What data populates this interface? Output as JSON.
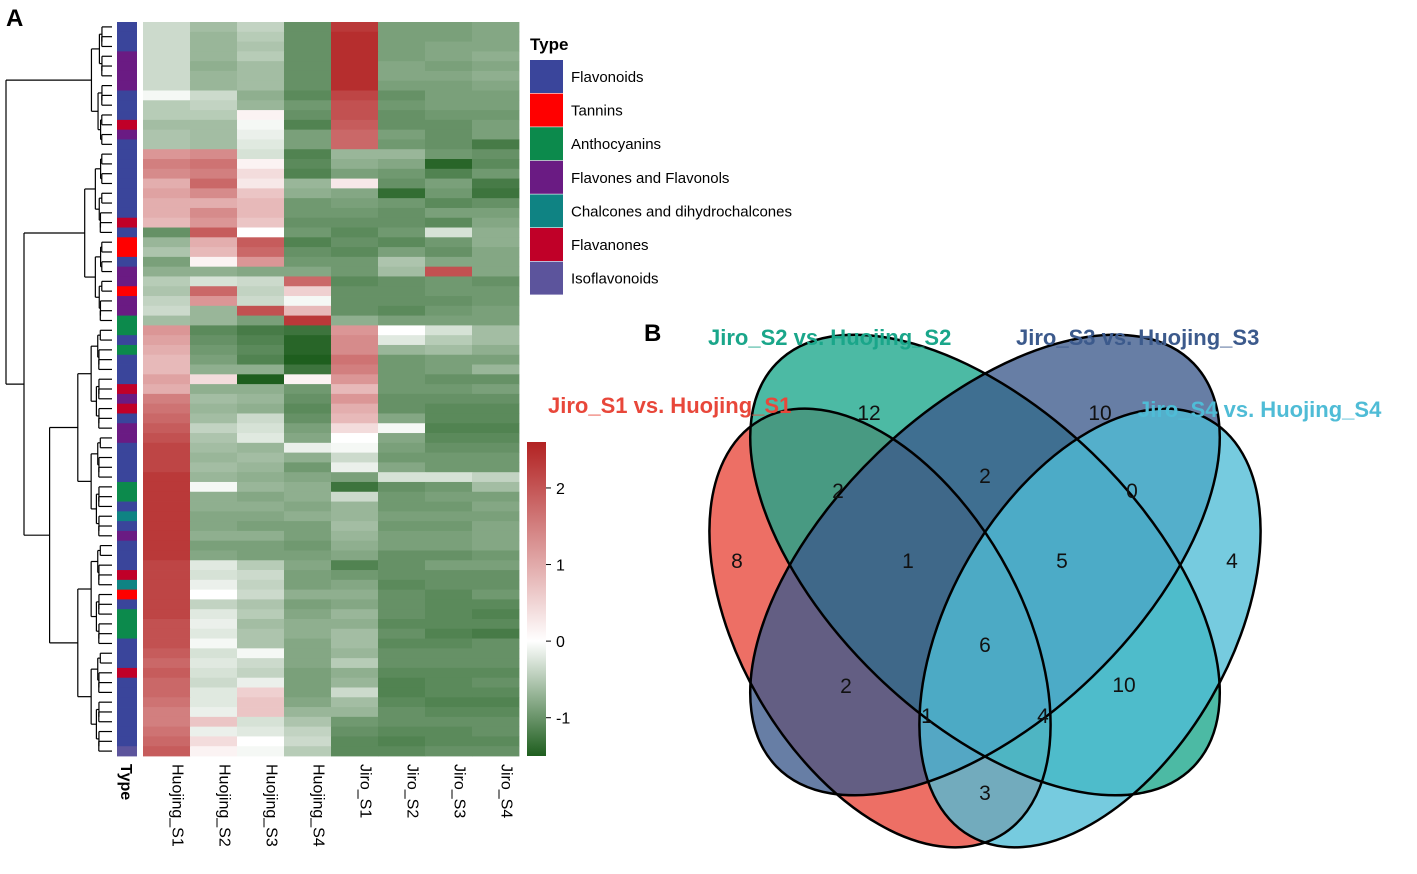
{
  "panels": {
    "a_label": "A",
    "b_label": "B"
  },
  "chart_data": [
    {
      "type": "heatmap",
      "title": "",
      "columns": [
        "Huojing_S1",
        "Huojing_S2",
        "Huojing_S3",
        "Huojing_S4",
        "Jiro_S1",
        "Jiro_S2",
        "Jiro_S3",
        "Jiro_S4"
      ],
      "row_annotation_label": "Type",
      "color_scale": {
        "min": -1.5,
        "max": 2.6,
        "ticks": [
          2,
          1,
          0,
          -1
        ],
        "tick_labels": [
          "2",
          "1",
          "0",
          "-1"
        ],
        "low_color": "#1e5e1e",
        "mid_color": "#ffffff",
        "high_color": "#b22222"
      },
      "legend": {
        "title": "Type",
        "entries": [
          {
            "label": "Flavonoids",
            "color": "#3a459b"
          },
          {
            "label": "Tannins",
            "color": "#ff0000"
          },
          {
            "label": "Anthocyanins",
            "color": "#0c8a4c"
          },
          {
            "label": "Flavones and Flavonols",
            "color": "#6a1b83"
          },
          {
            "label": "Chalcones and dihydrochalcones",
            "color": "#0f8383"
          },
          {
            "label": "Flavanones",
            "color": "#c00028"
          },
          {
            "label": "Isoflavonoids",
            "color": "#5c549c"
          }
        ]
      },
      "row_types": [
        "Flavonoids",
        "Flavonoids",
        "Flavonoids",
        "Flavones and Flavonols",
        "Flavones and Flavonols",
        "Flavones and Flavonols",
        "Flavones and Flavonols",
        "Flavonoids",
        "Flavonoids",
        "Flavonoids",
        "Flavanones",
        "Flavones and Flavonols",
        "Flavonoids",
        "Flavonoids",
        "Flavonoids",
        "Flavonoids",
        "Flavonoids",
        "Flavonoids",
        "Flavonoids",
        "Flavonoids",
        "Flavanones",
        "Flavonoids",
        "Tannins",
        "Tannins",
        "Flavonoids",
        "Flavones and Flavonols",
        "Flavones and Flavonols",
        "Tannins",
        "Flavones and Flavonols",
        "Flavones and Flavonols",
        "Anthocyanins",
        "Anthocyanins",
        "Flavonoids",
        "Anthocyanins",
        "Flavonoids",
        "Flavonoids",
        "Flavonoids",
        "Flavanones",
        "Flavones and Flavonols",
        "Flavanones",
        "Flavonoids",
        "Flavones and Flavonols",
        "Flavones and Flavonols",
        "Flavonoids",
        "Flavonoids",
        "Flavonoids",
        "Flavonoids",
        "Anthocyanins",
        "Anthocyanins",
        "Flavonoids",
        "Chalcones and dihydrochalcones",
        "Flavonoids",
        "Flavones and Flavonols",
        "Flavonoids",
        "Flavonoids",
        "Flavonoids",
        "Flavanones",
        "Chalcones and dihydrochalcones",
        "Tannins",
        "Flavonoids",
        "Anthocyanins",
        "Anthocyanins",
        "Anthocyanins",
        "Flavonoids",
        "Flavonoids",
        "Flavonoids",
        "Flavanones",
        "Flavonoids",
        "Flavonoids",
        "Flavonoids",
        "Flavonoids",
        "Flavonoids",
        "Flavonoids",
        "Flavonoids",
        "Isoflavonoids"
      ],
      "values": [
        [
          0.2,
          -0.2,
          0.1,
          -0.8,
          2.4,
          -0.6,
          -0.6,
          -0.5
        ],
        [
          0.2,
          -0.3,
          0.0,
          -0.8,
          2.5,
          -0.6,
          -0.6,
          -0.5
        ],
        [
          0.2,
          -0.3,
          -0.1,
          -0.8,
          2.5,
          -0.6,
          -0.5,
          -0.5
        ],
        [
          0.2,
          -0.3,
          0.0,
          -0.8,
          2.5,
          -0.6,
          -0.5,
          -0.4
        ],
        [
          0.2,
          -0.4,
          -0.2,
          -0.8,
          2.5,
          -0.5,
          -0.6,
          -0.5
        ],
        [
          0.2,
          -0.3,
          -0.2,
          -0.8,
          2.5,
          -0.5,
          -0.5,
          -0.4
        ],
        [
          0.2,
          -0.3,
          -0.2,
          -0.8,
          2.5,
          -0.6,
          -0.6,
          -0.5
        ],
        [
          0.6,
          0.2,
          -0.4,
          -0.9,
          2.3,
          -0.8,
          -0.6,
          -0.6
        ],
        [
          0.0,
          0.1,
          -0.3,
          -0.7,
          2.2,
          -0.7,
          -0.6,
          -0.6
        ],
        [
          0.0,
          0.0,
          0.8,
          -0.8,
          2.2,
          -0.8,
          -0.7,
          -0.7
        ],
        [
          -0.2,
          -0.2,
          0.6,
          -1.0,
          2.1,
          -0.8,
          -0.8,
          -0.6
        ],
        [
          -0.1,
          -0.2,
          0.5,
          -0.6,
          2.0,
          -0.6,
          -0.8,
          -0.6
        ],
        [
          -0.1,
          -0.2,
          0.4,
          -0.6,
          2.0,
          -0.7,
          -0.8,
          -1.1
        ],
        [
          1.6,
          1.7,
          0.3,
          -1.0,
          -0.3,
          -0.3,
          -0.7,
          -0.8
        ],
        [
          1.8,
          1.9,
          0.8,
          -0.9,
          -0.4,
          -0.5,
          -1.4,
          -0.9
        ],
        [
          1.7,
          1.8,
          1.0,
          -1.0,
          -0.6,
          -0.7,
          -1.0,
          -0.7
        ],
        [
          1.4,
          2.0,
          0.9,
          -0.3,
          0.9,
          -0.8,
          -0.6,
          -1.1
        ],
        [
          1.5,
          1.7,
          1.2,
          -0.4,
          -0.5,
          -1.3,
          -0.7,
          -1.2
        ],
        [
          1.4,
          1.4,
          1.3,
          -0.7,
          -0.6,
          -0.7,
          -0.9,
          -0.8
        ],
        [
          1.4,
          1.7,
          1.3,
          -0.7,
          -0.7,
          -0.8,
          -0.6,
          -0.6
        ],
        [
          1.3,
          1.6,
          1.2,
          -0.8,
          -0.8,
          -0.8,
          -0.9,
          -0.5
        ],
        [
          -0.8,
          2.1,
          0.7,
          -0.7,
          -0.9,
          -0.7,
          0.3,
          -0.4
        ],
        [
          -0.3,
          1.4,
          2.1,
          -1.0,
          -0.8,
          -0.9,
          -0.7,
          -0.4
        ],
        [
          -0.1,
          1.3,
          2.0,
          -0.8,
          -0.9,
          -0.6,
          -0.8,
          -0.5
        ],
        [
          -0.6,
          0.8,
          1.6,
          -0.7,
          -0.7,
          -0.1,
          -0.5,
          -0.5
        ],
        [
          -0.4,
          -0.4,
          -0.5,
          -0.5,
          -0.7,
          -0.2,
          2.2,
          -0.5
        ],
        [
          0.0,
          0.3,
          0.2,
          2.0,
          -0.9,
          -0.8,
          -0.7,
          -0.8
        ],
        [
          -0.1,
          2.0,
          0.1,
          1.1,
          -0.8,
          -0.8,
          -0.7,
          -0.7
        ],
        [
          0.1,
          1.6,
          0.2,
          0.6,
          -0.8,
          -0.8,
          -0.8,
          -0.7
        ],
        [
          0.2,
          -0.3,
          2.2,
          1.3,
          -0.8,
          -0.9,
          -0.7,
          -0.6
        ],
        [
          -0.2,
          -0.3,
          -0.6,
          2.4,
          -0.4,
          -0.6,
          -0.6,
          -0.6
        ],
        [
          1.6,
          -0.9,
          -1.1,
          -1.2,
          1.6,
          0.7,
          0.3,
          -0.2
        ],
        [
          1.5,
          -0.8,
          -1.0,
          -1.4,
          1.7,
          0.4,
          0.0,
          -0.2
        ],
        [
          1.4,
          -0.7,
          -0.9,
          -1.4,
          1.7,
          -0.3,
          -0.2,
          -0.4
        ],
        [
          1.3,
          -0.6,
          -1.0,
          -1.5,
          1.9,
          -0.7,
          -0.6,
          -0.6
        ],
        [
          1.3,
          -0.4,
          -0.4,
          -1.2,
          1.8,
          -0.7,
          -0.6,
          -0.3
        ],
        [
          1.5,
          1.0,
          -1.5,
          0.8,
          1.6,
          -0.7,
          -0.8,
          -0.8
        ],
        [
          1.4,
          -0.4,
          -0.4,
          -0.7,
          1.3,
          -0.7,
          -0.7,
          -0.6
        ],
        [
          1.8,
          -0.2,
          -0.3,
          -0.8,
          1.6,
          -0.8,
          -0.8,
          -0.8
        ],
        [
          1.9,
          -0.3,
          -0.4,
          -0.9,
          1.4,
          -0.8,
          -0.9,
          -0.9
        ],
        [
          2.0,
          -0.2,
          0.2,
          -0.8,
          1.3,
          -0.5,
          -0.9,
          -0.9
        ],
        [
          2.1,
          0.1,
          0.3,
          -0.6,
          1.0,
          0.6,
          -1.0,
          -1.0
        ],
        [
          2.2,
          -0.1,
          0.4,
          -0.5,
          0.7,
          -0.5,
          -0.9,
          -0.9
        ],
        [
          2.3,
          -0.2,
          -0.3,
          0.5,
          0.6,
          -0.6,
          -0.8,
          -0.8
        ],
        [
          2.3,
          -0.3,
          -0.2,
          -0.4,
          0.2,
          -0.7,
          -0.7,
          -0.7
        ],
        [
          2.3,
          -0.2,
          -0.3,
          -0.7,
          0.5,
          -0.5,
          -0.7,
          -0.7
        ],
        [
          2.4,
          -0.3,
          -0.4,
          -0.5,
          -0.6,
          0.3,
          0.3,
          0.1
        ],
        [
          2.4,
          0.6,
          -0.3,
          -0.4,
          -1.2,
          -0.8,
          -0.7,
          -0.2
        ],
        [
          2.4,
          -0.4,
          -0.5,
          -0.4,
          0.2,
          -0.7,
          -0.6,
          -0.6
        ],
        [
          2.4,
          -0.4,
          -0.4,
          -0.5,
          -0.3,
          -0.7,
          -0.7,
          -0.5
        ],
        [
          2.4,
          -0.5,
          -0.5,
          -0.4,
          -0.3,
          -0.6,
          -0.6,
          -0.6
        ],
        [
          2.4,
          -0.5,
          -0.6,
          -0.6,
          -0.2,
          -0.7,
          -0.7,
          -0.5
        ],
        [
          2.4,
          -0.4,
          -0.4,
          -0.6,
          -0.3,
          -0.6,
          -0.6,
          -0.5
        ],
        [
          2.4,
          -0.6,
          -0.6,
          -0.7,
          -0.4,
          -0.6,
          -0.6,
          -0.5
        ],
        [
          2.4,
          -0.5,
          -0.6,
          -0.6,
          -0.5,
          -0.8,
          -0.8,
          -0.7
        ],
        [
          2.3,
          0.4,
          0.0,
          -0.5,
          -1.0,
          -0.8,
          -0.6,
          -0.6
        ],
        [
          2.3,
          0.3,
          0.2,
          -0.6,
          -0.7,
          -0.8,
          -0.8,
          -0.8
        ],
        [
          2.3,
          0.5,
          0.1,
          -0.6,
          -0.5,
          -0.9,
          -0.8,
          -0.8
        ],
        [
          2.3,
          0.7,
          0.2,
          -0.4,
          -0.4,
          -0.8,
          -0.9,
          -0.7
        ],
        [
          2.3,
          0.1,
          -0.1,
          -0.6,
          -0.5,
          -0.8,
          -0.9,
          -0.9
        ],
        [
          2.3,
          0.4,
          0.0,
          -0.5,
          -0.3,
          -0.8,
          -0.9,
          -1.0
        ],
        [
          2.2,
          0.5,
          -0.2,
          -0.4,
          -0.4,
          -0.9,
          -0.9,
          -0.9
        ],
        [
          2.2,
          0.4,
          -0.1,
          -0.4,
          -0.2,
          -0.8,
          -1.0,
          -1.1
        ],
        [
          2.2,
          0.6,
          -0.1,
          -0.5,
          -0.2,
          -0.9,
          -0.9,
          -0.8
        ],
        [
          2.1,
          0.3,
          0.6,
          -0.5,
          -0.3,
          -0.8,
          -0.8,
          -0.8
        ],
        [
          2.0,
          0.4,
          0.2,
          -0.5,
          0.0,
          -0.8,
          -0.8,
          -0.8
        ],
        [
          2.1,
          0.3,
          0.1,
          -0.6,
          -0.4,
          -0.9,
          -0.9,
          -0.9
        ],
        [
          2.0,
          0.2,
          0.5,
          -0.6,
          -0.3,
          -1.0,
          -0.9,
          -0.8
        ],
        [
          2.0,
          0.4,
          1.1,
          -0.6,
          0.2,
          -1.0,
          -0.9,
          -0.9
        ],
        [
          1.9,
          0.4,
          1.2,
          -0.5,
          -0.2,
          -0.9,
          -1.0,
          -1.0
        ],
        [
          1.8,
          0.5,
          1.2,
          -0.3,
          -0.3,
          -0.8,
          -0.9,
          -0.9
        ],
        [
          1.8,
          1.2,
          0.3,
          -0.1,
          -0.7,
          -0.8,
          -0.8,
          -0.8
        ],
        [
          1.9,
          0.5,
          0.4,
          0.1,
          -0.8,
          -0.9,
          -0.9,
          -0.8
        ],
        [
          2.0,
          1.0,
          0.7,
          0.2,
          -0.9,
          -1.0,
          -0.9,
          -0.9
        ],
        [
          2.1,
          0.8,
          0.6,
          0.0,
          -0.9,
          -0.9,
          -0.8,
          -0.8
        ]
      ]
    },
    {
      "type": "venn",
      "sets": [
        {
          "name": "Jiro_S1 vs. Huojing_S1",
          "color": "#e8473a"
        },
        {
          "name": "Jiro_S2 vs. Huojing_S2",
          "color": "#1aa68a"
        },
        {
          "name": "Jiro_S3 vs. Huojing_S3",
          "color": "#3c5a8c"
        },
        {
          "name": "Jiro_S4 vs. Huojing_S4",
          "color": "#4fbcd6"
        }
      ],
      "regions": [
        {
          "sets": [
            "S1"
          ],
          "value": 8
        },
        {
          "sets": [
            "S2"
          ],
          "value": 12
        },
        {
          "sets": [
            "S3"
          ],
          "value": 10
        },
        {
          "sets": [
            "S4"
          ],
          "value": 4
        },
        {
          "sets": [
            "S1",
            "S2"
          ],
          "value": 2
        },
        {
          "sets": [
            "S2",
            "S3"
          ],
          "value": 2
        },
        {
          "sets": [
            "S3",
            "S4"
          ],
          "value": 0
        },
        {
          "sets": [
            "S1",
            "S2",
            "S3"
          ],
          "value": 1
        },
        {
          "sets": [
            "S2",
            "S3",
            "S4"
          ],
          "value": 5
        },
        {
          "sets": [
            "S1",
            "S2",
            "S3",
            "S4"
          ],
          "value": 6
        },
        {
          "sets": [
            "S1",
            "S3"
          ],
          "value": 2
        },
        {
          "sets": [
            "S2",
            "S4"
          ],
          "value": 10
        },
        {
          "sets": [
            "S1",
            "S3",
            "S4"
          ],
          "value": 1
        },
        {
          "sets": [
            "S1",
            "S2",
            "S4"
          ],
          "value": 4
        },
        {
          "sets": [
            "S1",
            "S4"
          ],
          "value": 3
        }
      ]
    }
  ]
}
